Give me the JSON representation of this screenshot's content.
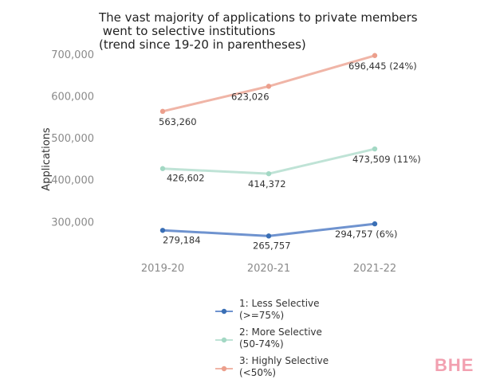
{
  "chart_data": {
    "type": "line",
    "title_lines": [
      "The vast majority of applications to private members",
      " went to selective institutions",
      "(trend since 19-20 in parentheses)"
    ],
    "ylabel": "Applications",
    "xlabel": "",
    "categories": [
      "2019-20",
      "2020-21",
      "2021-22"
    ],
    "yticks": [
      300000,
      400000,
      500000,
      600000,
      700000
    ],
    "ytick_labels": [
      "300,000",
      "400,000",
      "500,000",
      "600,000",
      "700,000"
    ],
    "ylim": [
      255000,
      715000
    ],
    "grid": false,
    "legend_position": "bottom",
    "series": [
      {
        "name_lines": [
          "1: Less Selective",
          "(>=75%)"
        ],
        "color": "#6f93cf",
        "marker_color": "#3a6fb5",
        "values": [
          279184,
          265757,
          294757
        ],
        "labels": [
          "279,184",
          "265,757",
          "294,757 (6%)"
        ]
      },
      {
        "name_lines": [
          "2: More Selective",
          "(50-74%)"
        ],
        "color": "#bfe3d6",
        "marker_color": "#a3d8c4",
        "values": [
          426602,
          414372,
          473509
        ],
        "labels": [
          "426,602",
          "414,372",
          "473,509 (11%)"
        ]
      },
      {
        "name_lines": [
          "3: Highly Selective",
          "(<50%)"
        ],
        "color": "#f0b5a7",
        "marker_color": "#ec9f8c",
        "values": [
          563260,
          623026,
          696445
        ],
        "labels": [
          "563,260",
          "623,026",
          "696,445 (24%)"
        ]
      }
    ]
  },
  "watermark": "BHE"
}
